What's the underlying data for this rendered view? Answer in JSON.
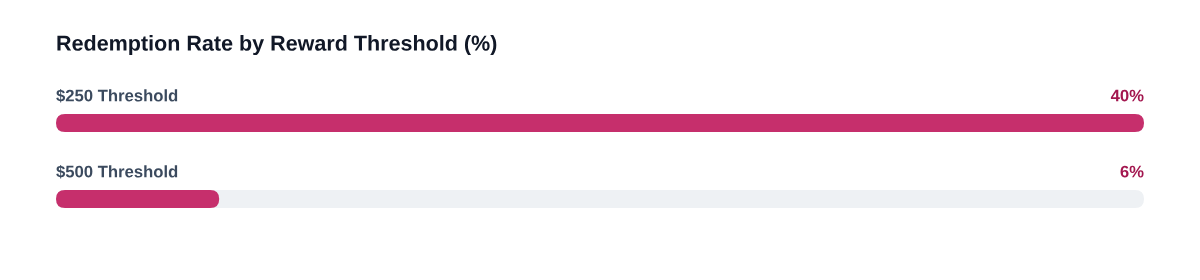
{
  "chart_data": {
    "type": "bar",
    "orientation": "horizontal",
    "title": "Redemption Rate by Reward Threshold (%)",
    "categories": [
      "$250 Threshold",
      "$500 Threshold"
    ],
    "values": [
      40,
      6
    ],
    "value_labels": [
      "40%",
      "6%"
    ],
    "color": "#c62f6c",
    "xlim": [
      0,
      40
    ],
    "tick_labels": false
  }
}
